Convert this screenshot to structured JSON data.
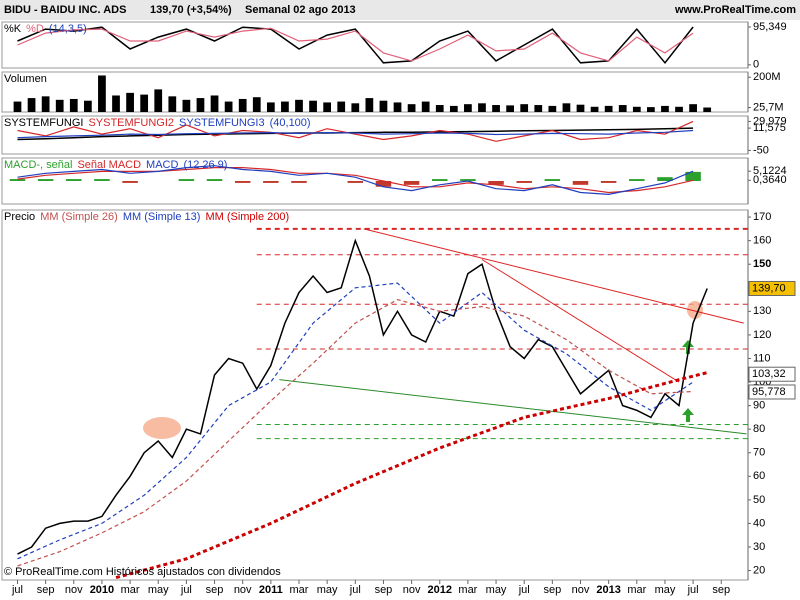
{
  "header": {
    "symbol": "BIDU - BAIDU INC. ADS",
    "price": "139,70 (+3,54%)",
    "period": "Semanal  02 ago 2013",
    "site": "www.ProRealTime.com"
  },
  "footer": "© ProRealTime.com Históricos ajustados con dividendos",
  "chart_data": [
    {
      "type": "line",
      "params": "(14,3,5)",
      "ylim": [
        -8,
        108
      ],
      "yticks": [
        {
          "value": 95.349,
          "label": "95,349"
        },
        0
      ],
      "x": [
        0,
        2,
        4,
        6,
        8,
        10,
        12,
        14,
        16,
        18,
        20,
        22,
        24,
        26,
        28,
        30,
        32,
        34,
        36,
        38,
        40,
        42,
        44,
        46,
        48
      ],
      "series": [
        {
          "name": "%K",
          "color": "#000000",
          "values": [
            60,
            90,
            85,
            95,
            40,
            70,
            90,
            60,
            95,
            90,
            40,
            75,
            90,
            5,
            10,
            60,
            85,
            10,
            50,
            90,
            5,
            10,
            90,
            5,
            95.349
          ]
        },
        {
          "name": "%D",
          "color": "#e0607a",
          "values": [
            50,
            80,
            88,
            90,
            60,
            60,
            85,
            70,
            85,
            92,
            60,
            65,
            85,
            30,
            10,
            40,
            75,
            35,
            40,
            80,
            30,
            10,
            70,
            30,
            80
          ]
        }
      ]
    },
    {
      "type": "bar",
      "title": "Volumen",
      "color": "#000000",
      "ylim": [
        0,
        230000000
      ],
      "yticks": [
        {
          "value": 200000000,
          "label": "200M"
        },
        {
          "value": 25700000,
          "label": "25,7M"
        }
      ],
      "x": [
        0,
        1,
        2,
        3,
        4,
        5,
        6,
        7,
        8,
        9,
        10,
        11,
        12,
        13,
        14,
        15,
        16,
        17,
        18,
        19,
        20,
        21,
        22,
        23,
        24,
        25,
        26,
        27,
        28,
        29,
        30,
        31,
        32,
        33,
        34,
        35,
        36,
        37,
        38,
        39,
        40,
        41,
        42,
        43,
        44,
        45,
        46,
        47,
        48,
        49
      ],
      "values": [
        60000000,
        80000000,
        90000000,
        70000000,
        75000000,
        65000000,
        210000000,
        95000000,
        110000000,
        100000000,
        130000000,
        90000000,
        70000000,
        80000000,
        95000000,
        60000000,
        75000000,
        85000000,
        55000000,
        60000000,
        70000000,
        65000000,
        55000000,
        60000000,
        50000000,
        80000000,
        65000000,
        55000000,
        45000000,
        60000000,
        40000000,
        35000000,
        45000000,
        50000000,
        40000000,
        38000000,
        45000000,
        40000000,
        35000000,
        50000000,
        42000000,
        30000000,
        35000000,
        40000000,
        30000000,
        28000000,
        35000000,
        30000000,
        45000000,
        25700000
      ]
    },
    {
      "type": "line",
      "params": "(40,100)",
      "ylim": [
        -60,
        45
      ],
      "yticks": [
        {
          "value": 29.979,
          "label": "29,979"
        },
        {
          "value": 11.575,
          "label": "11,575"
        },
        -50
      ],
      "x": [
        0,
        2,
        4,
        6,
        8,
        10,
        12,
        14,
        16,
        18,
        20,
        22,
        24,
        26,
        28,
        30,
        32,
        34,
        36,
        38,
        40,
        42,
        44,
        46,
        48
      ],
      "series": [
        {
          "name": "SYSTEMFUNGI",
          "color": "#000000",
          "values": [
            -20,
            -18,
            -15,
            -12,
            -10,
            -8,
            -6,
            -5,
            -4,
            -3,
            -2,
            -2,
            -1,
            0,
            0,
            1,
            2,
            3,
            4,
            5,
            6,
            7,
            8,
            10,
            11.575
          ]
        },
        {
          "name": "SYSTEMFUNGI2",
          "color": "#d62728",
          "values": [
            5,
            -10,
            15,
            -5,
            10,
            -15,
            20,
            -10,
            5,
            0,
            -15,
            10,
            -5,
            -20,
            -10,
            5,
            -5,
            -25,
            -10,
            5,
            -20,
            -15,
            5,
            -5,
            29.979
          ]
        },
        {
          "name": "SYSTEMFUNGI3",
          "color": "#1f3fbf",
          "values": [
            -15,
            -12,
            -10,
            -8,
            -5,
            -6,
            -4,
            -3,
            -2,
            -1,
            -3,
            -1,
            -2,
            -5,
            -4,
            -2,
            -3,
            -6,
            -5,
            -3,
            -4,
            -5,
            -2,
            0,
            5
          ]
        }
      ]
    },
    {
      "type": "line",
      "params": "(12 26 9)",
      "ylim": [
        -12,
        12
      ],
      "yticks": [
        {
          "value": 5.1224,
          "label": "5,1224"
        },
        {
          "value": 0.364,
          "label": "0,3640"
        }
      ],
      "x": [
        0,
        2,
        4,
        6,
        8,
        10,
        12,
        14,
        16,
        18,
        20,
        22,
        24,
        26,
        28,
        30,
        32,
        34,
        36,
        38,
        40,
        42,
        44,
        46,
        48
      ],
      "series": [
        {
          "name": "MACD-, señal",
          "type": "bar",
          "color": "#2ca02c",
          "neg_color": "#c0392b",
          "values": [
            1,
            1,
            1,
            1,
            -1,
            0,
            1,
            1,
            -1,
            -1,
            -1,
            0,
            -1,
            -3,
            -2,
            1,
            1,
            -2,
            -1,
            1,
            -2,
            -1,
            1,
            2,
            4.76
          ]
        },
        {
          "name": "Señal MACD",
          "color": "#d62728",
          "values": [
            1,
            3,
            4,
            5,
            5,
            5,
            6,
            7,
            7,
            6,
            4,
            4,
            3,
            0,
            -3,
            -3,
            -1,
            -2,
            -4,
            -3,
            -4,
            -6,
            -5,
            -3,
            0.364
          ]
        },
        {
          "name": "MACD",
          "color": "#1f3fbf",
          "values": [
            2,
            4,
            5,
            6,
            4,
            5,
            7,
            8,
            6,
            5,
            3,
            4,
            2,
            -3,
            -5,
            -2,
            0,
            -4,
            -5,
            -2,
            -6,
            -7,
            -4,
            -1,
            5.1224
          ]
        }
      ]
    },
    {
      "type": "line",
      "xlim": [
        -1.1,
        51.9
      ],
      "ylim": [
        16,
        173
      ],
      "xticks": [
        {
          "value": 0,
          "label": "jul"
        },
        {
          "value": 2,
          "label": "sep"
        },
        {
          "value": 4,
          "label": "nov"
        },
        {
          "value": 6,
          "label": "2010"
        },
        {
          "value": 8,
          "label": "mar"
        },
        {
          "value": 10,
          "label": "may"
        },
        {
          "value": 12,
          "label": "jul"
        },
        {
          "value": 14,
          "label": "sep"
        },
        {
          "value": 16,
          "label": "nov"
        },
        {
          "value": 18,
          "label": "2011"
        },
        {
          "value": 20,
          "label": "mar"
        },
        {
          "value": 22,
          "label": "may"
        },
        {
          "value": 24,
          "label": "jul"
        },
        {
          "value": 26,
          "label": "sep"
        },
        {
          "value": 28,
          "label": "nov"
        },
        {
          "value": 30,
          "label": "2012"
        },
        {
          "value": 32,
          "label": "mar"
        },
        {
          "value": 34,
          "label": "may"
        },
        {
          "value": 36,
          "label": "jul"
        },
        {
          "value": 38,
          "label": "sep"
        },
        {
          "value": 40,
          "label": "nov"
        },
        {
          "value": 42,
          "label": "2013"
        },
        {
          "value": 44,
          "label": "mar"
        },
        {
          "value": 46,
          "label": "may"
        },
        {
          "value": 48,
          "label": "jul"
        },
        {
          "value": 50,
          "label": "sep"
        }
      ],
      "yticks": [
        170,
        160,
        150,
        140,
        130,
        120,
        110,
        100,
        90,
        80,
        70,
        60,
        50,
        40,
        30,
        20
      ],
      "tags": [
        {
          "value": 139.7,
          "label": "139,70",
          "color": "#f5c000"
        },
        {
          "value": 103.32,
          "label": "103,32",
          "color": "#ffffff"
        },
        {
          "value": 95.778,
          "label": "95,778",
          "color": "#ffffff"
        }
      ],
      "levels": [
        {
          "value": 165,
          "color": "#d62728"
        },
        {
          "value": 154,
          "color": "#d62728"
        },
        {
          "value": 133,
          "color": "#d62728"
        },
        {
          "value": 114,
          "color": "#d62728"
        },
        {
          "value": 82,
          "color": "#2ca02c"
        },
        {
          "value": 76,
          "color": "#2ca02c"
        }
      ],
      "lines": [
        {
          "x": [
            24.6,
            51.6
          ],
          "y": [
            165,
            125
          ],
          "color": "#e02020"
        },
        {
          "x": [
            33,
            47
          ],
          "y": [
            152,
            100
          ],
          "color": "#e02020"
        },
        {
          "x": [
            18.6,
            51.8
          ],
          "y": [
            101,
            78
          ],
          "color": "#2a8a2a"
        }
      ],
      "series": [
        {
          "name": "Precio",
          "color": "#000000",
          "x": [
            0,
            1,
            2,
            3,
            4,
            5,
            6,
            7,
            8,
            9,
            10,
            11,
            12,
            13,
            14,
            15,
            16,
            17,
            18,
            19,
            20,
            21,
            22,
            23,
            24,
            25,
            26,
            27,
            28,
            29,
            30,
            31,
            32,
            33,
            34,
            35,
            36,
            37,
            38,
            39,
            40,
            41,
            42,
            43,
            44,
            45,
            46,
            47,
            48,
            49
          ],
          "values": [
            27,
            30,
            38,
            40,
            41,
            41,
            43,
            52,
            60,
            70,
            75,
            68,
            80,
            78,
            103,
            110,
            108,
            97,
            107,
            125,
            138,
            145,
            138,
            140,
            160,
            145,
            120,
            130,
            120,
            117,
            130,
            128,
            146,
            150,
            130,
            115,
            110,
            118,
            115,
            105,
            95,
            100,
            105,
            90,
            88,
            85,
            95,
            90,
            125,
            139.7
          ]
        },
        {
          "name": "MM (Simple 26)",
          "color": "#c0504d",
          "dash": true,
          "x": [
            0,
            3,
            6,
            9,
            12,
            15,
            18,
            21,
            24,
            27,
            30,
            33,
            36,
            39,
            42,
            45,
            48
          ],
          "values": [
            22,
            28,
            36,
            45,
            58,
            75,
            92,
            108,
            125,
            135,
            130,
            132,
            128,
            118,
            105,
            95,
            96
          ]
        },
        {
          "name": "MM (Simple 13)",
          "color": "#1f3fbf",
          "dash": true,
          "x": [
            0,
            3,
            6,
            9,
            12,
            15,
            18,
            21,
            24,
            27,
            30,
            33,
            36,
            39,
            42,
            45,
            48
          ],
          "values": [
            25,
            33,
            40,
            52,
            68,
            90,
            100,
            125,
            140,
            142,
            125,
            138,
            122,
            112,
            98,
            88,
            100
          ]
        },
        {
          "name": "MM (Simple 200)",
          "color": "#cc0000",
          "dash": true,
          "width": 3,
          "x": [
            7,
            12,
            18,
            24,
            30,
            36,
            42,
            47,
            49
          ],
          "values": [
            17,
            25,
            40,
            57,
            72,
            85,
            93,
            101,
            104
          ]
        }
      ]
    }
  ]
}
